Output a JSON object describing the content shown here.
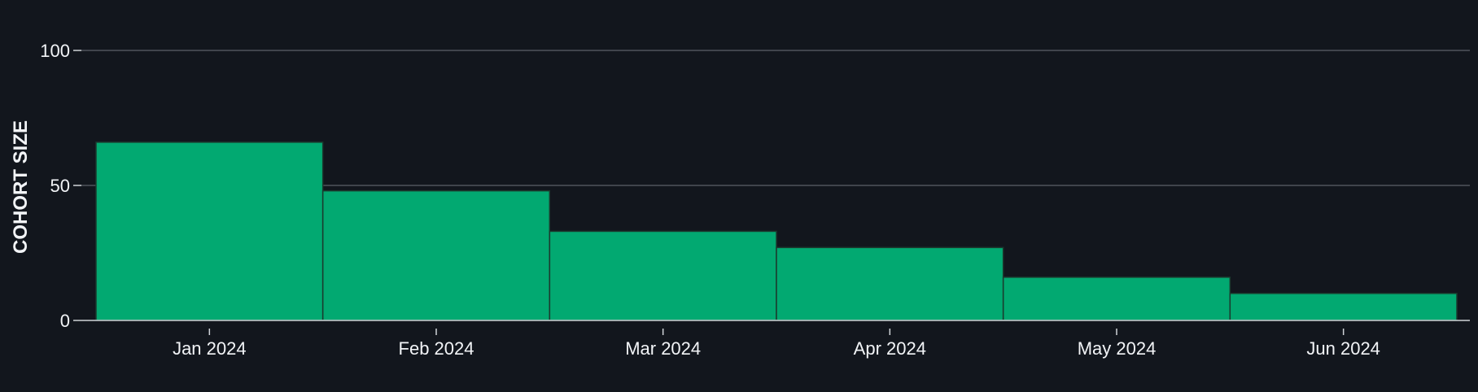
{
  "colors": {
    "background": "#12161d",
    "bar": "#02a971",
    "bar_edge": "#1b3a2e",
    "grid": "#5c6068",
    "axis": "#cfd3d8",
    "text": "#f2f4f7"
  },
  "chart_data": {
    "type": "bar",
    "title": "",
    "xlabel": "",
    "ylabel": "COHORT SIZE",
    "categories": [
      "Jan 2024",
      "Feb 2024",
      "Mar 2024",
      "Apr 2024",
      "May 2024",
      "Jun 2024"
    ],
    "values": [
      66,
      48,
      33,
      27,
      16,
      10
    ],
    "ylim": [
      0,
      100
    ],
    "yticks": [
      0,
      50,
      100
    ],
    "grid": "horizontal",
    "legend": "none"
  }
}
